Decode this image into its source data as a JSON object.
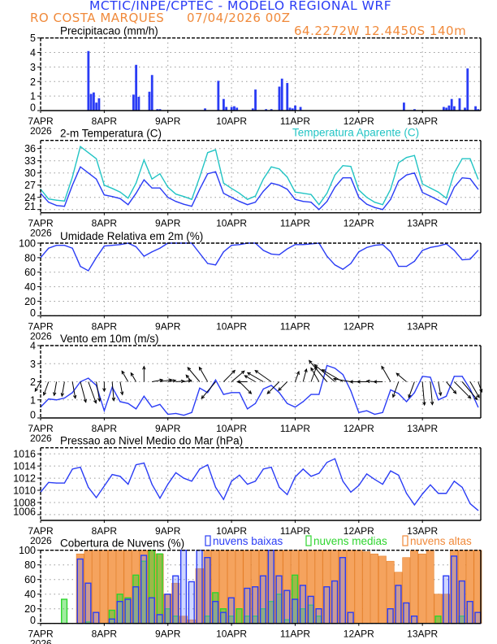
{
  "header": {
    "title": "MCTIC/INPE/CPTEC - MODELO REGIONAL WRF",
    "location": "RO COSTA MARQUES",
    "run": "07/04/2026 00Z",
    "coords": "64.2272W 12.4450S 140m"
  },
  "colors": {
    "title": "#2a3cf5",
    "orange": "#f0893a",
    "blue": "#2a3cf5",
    "cyan": "#22c4c4",
    "green": "#2ed52e",
    "high_fill": "#f5a35e"
  },
  "chart_data": [
    {
      "id": "precip",
      "type": "bar",
      "title": "Precipitacao (mm/h)",
      "ylim": [
        0,
        5
      ],
      "yticks": [
        "0",
        "1",
        "2",
        "3",
        "4",
        "5"
      ],
      "grid": true,
      "xticks": [
        "7APR",
        "8APR",
        "9APR",
        "10APR",
        "11APR",
        "12APR",
        "13APR"
      ],
      "year": "2026",
      "bars": [
        [
          "07APR 18Z",
          4.1
        ],
        [
          "07APR 19Z",
          1.15
        ],
        [
          "07APR 20Z",
          1.25
        ],
        [
          "07APR 21Z",
          0.55
        ],
        [
          "07APR 22Z",
          0.85
        ],
        [
          "08APR 11Z",
          1.1
        ],
        [
          "08APR 12Z",
          3.15
        ],
        [
          "08APR 13Z",
          0.95
        ],
        [
          "08APR 17Z",
          1.3
        ],
        [
          "08APR 18Z",
          2.45
        ],
        [
          "08APR 20Z",
          0.1
        ],
        [
          "08APR 21Z",
          0.1
        ],
        [
          "09APR 14Z",
          0.15
        ],
        [
          "09APR 19Z",
          2.05
        ],
        [
          "09APR 21Z",
          0.8
        ],
        [
          "09APR 22Z",
          0.25
        ],
        [
          "10APR 00Z",
          0.25
        ],
        [
          "10APR 01Z",
          0.3
        ],
        [
          "10APR 02Z",
          0.2
        ],
        [
          "10APR 08Z",
          0.15
        ],
        [
          "10APR 09Z",
          1.45
        ],
        [
          "10APR 13Z",
          0.1
        ],
        [
          "10APR 15Z",
          0.1
        ],
        [
          "10APR 18Z",
          1.65
        ],
        [
          "10APR 19Z",
          2.2
        ],
        [
          "10APR 21Z",
          1.9
        ],
        [
          "10APR 22Z",
          0.2
        ],
        [
          "10APR 23Z",
          0.15
        ],
        [
          "11APR 00Z",
          0.35
        ],
        [
          "11APR 02Z",
          0.25
        ],
        [
          "12APR 17Z",
          0.55
        ],
        [
          "12APR 21Z",
          0.1
        ],
        [
          "13APR 08Z",
          0.25
        ],
        [
          "13APR 09Z",
          0.2
        ],
        [
          "13APR 10Z",
          0.35
        ],
        [
          "13APR 11Z",
          0.8
        ],
        [
          "13APR 12Z",
          0.3
        ],
        [
          "13APR 14Z",
          0.85
        ],
        [
          "13APR 16Z",
          0.2
        ],
        [
          "13APR 17Z",
          2.9
        ],
        [
          "13APR 20Z",
          0.3
        ],
        [
          "13APR 21Z",
          0.1
        ]
      ]
    },
    {
      "id": "temp",
      "type": "line",
      "title": "2-m Temperatura (C)",
      "ylim": [
        20.2,
        38
      ],
      "yticks": [
        "21",
        "24",
        "27",
        "30",
        "33",
        "36"
      ],
      "grid": true,
      "xticks": [
        "7APR",
        "8APR",
        "9APR",
        "10APR",
        "11APR",
        "12APR",
        "13APR"
      ],
      "year": "2026",
      "series": [
        {
          "name": "",
          "color": "#2a3cf5",
          "values": [
            25.0,
            22.8,
            22.0,
            21.8,
            27.0,
            31.5,
            30.0,
            28.5,
            24.6,
            24.2,
            23.7,
            22.2,
            25.0,
            28.3,
            26.3,
            26.3,
            24.0,
            23.0,
            22.3,
            21.8,
            26.0,
            29.8,
            30.3,
            25.0,
            24.0,
            23.0,
            22.2,
            22.8,
            25.5,
            27.5,
            27.0,
            26.0,
            23.5,
            23.0,
            22.8,
            21.0,
            23.0,
            26.5,
            28.8,
            28.8,
            24.0,
            22.3,
            21.5,
            21.0,
            23.5,
            28.0,
            29.5,
            30.0,
            25.2,
            24.3,
            23.3,
            22.2,
            26.5,
            28.8,
            28.6,
            26.0
          ]
        },
        {
          "name": "Temperatura Aparente (C)",
          "color": "#22c4c4",
          "values": [
            26.0,
            23.6,
            23.3,
            23.1,
            29.0,
            36.5,
            35.0,
            33.5,
            27.0,
            26.2,
            25.3,
            23.8,
            27.5,
            33.2,
            28.5,
            29.8,
            26.5,
            24.8,
            24.2,
            23.5,
            29.0,
            35.0,
            35.7,
            27.5,
            26.2,
            25.0,
            23.5,
            24.3,
            28.5,
            31.5,
            31.0,
            29.0,
            25.3,
            25.0,
            24.7,
            22.2,
            25.0,
            29.5,
            31.8,
            31.6,
            25.8,
            24.0,
            22.8,
            22.2,
            26.0,
            32.5,
            33.8,
            34.3,
            27.3,
            26.3,
            25.3,
            23.8,
            30.0,
            33.5,
            33.5,
            28.5
          ]
        }
      ]
    },
    {
      "id": "rh",
      "type": "line",
      "title": "Umidade Relativa em 2m (%)",
      "ylim": [
        0,
        100
      ],
      "yticks": [
        "0",
        "20",
        "40",
        "60",
        "80",
        "100"
      ],
      "grid": true,
      "xticks": [
        "7APR",
        "8APR",
        "9APR",
        "10APR",
        "11APR",
        "12APR",
        "13APR"
      ],
      "year": "2026",
      "series": [
        {
          "color": "#2a3cf5",
          "values": [
            80,
            93,
            97,
            97,
            93,
            68,
            62,
            80,
            96,
            97,
            98,
            100,
            95,
            82,
            88,
            93,
            100,
            100,
            100,
            100,
            86,
            72,
            70,
            88,
            97,
            98,
            100,
            100,
            90,
            85,
            84,
            92,
            98,
            98,
            99,
            100,
            82,
            70,
            64,
            72,
            88,
            94,
            97,
            98,
            88,
            68,
            68,
            75,
            90,
            94,
            96,
            99,
            90,
            77,
            78,
            90
          ]
        }
      ]
    },
    {
      "id": "wind",
      "type": "line",
      "title": "Vento em 10m (m/s)",
      "ylim": [
        0,
        4
      ],
      "yticks": [
        "0",
        "1",
        "2",
        "3",
        "4"
      ],
      "grid": true,
      "xticks": [
        "7APR",
        "8APR",
        "9APR",
        "10APR",
        "11APR",
        "12APR",
        "13APR"
      ],
      "year": "2026",
      "series": [
        {
          "color": "#2a3cf5",
          "values": [
            0.6,
            1.05,
            1.0,
            1.1,
            1.4,
            2.0,
            2.2,
            1.8,
            0.4,
            1.7,
            0.9,
            0.8,
            0.5,
            1.2,
            0.6,
            0.75,
            0.2,
            0.25,
            0.15,
            0.3,
            1.65,
            1.4,
            2.1,
            1.3,
            1.4,
            1.4,
            0.5,
            0.8,
            1.6,
            1.8,
            1.4,
            0.8,
            0.6,
            0.9,
            1.3,
            1.3,
            2.9,
            2.75,
            2.4,
            1.5,
            0.3,
            0.4,
            0.2,
            0.3,
            1.55,
            1.35,
            0.9,
            1.4,
            2.3,
            2.25,
            1.0,
            1.2,
            2.3,
            2.3,
            1.6,
            0.6
          ]
        }
      ],
      "arrow_direction_deg": [
        210,
        200,
        190,
        190,
        170,
        165,
        160,
        170,
        180,
        175,
        170,
        330,
        330,
        0,
        80,
        80,
        80,
        85,
        80,
        320,
        320,
        330,
        220,
        45,
        50,
        135,
        270,
        300,
        300,
        305,
        225,
        225,
        20,
        15,
        20,
        330,
        320,
        310,
        300,
        280,
        270,
        270,
        275,
        270,
        330,
        200,
        310,
        200,
        175,
        175,
        170,
        140,
        135,
        140,
        150,
        160
      ]
    },
    {
      "id": "pressure",
      "type": "line",
      "title": "Pressao ao Nivel Medio do Mar (hPa)",
      "ylim": [
        1005.05,
        1017
      ],
      "yticks": [
        "1006",
        "1008",
        "1010",
        "1012",
        "1014",
        "1016"
      ],
      "grid": true,
      "xticks": [
        "7APR",
        "8APR",
        "9APR",
        "10APR",
        "11APR",
        "12APR",
        "13APR"
      ],
      "year": "2026",
      "series": [
        {
          "color": "#2a3cf5",
          "values": [
            1009.7,
            1011.3,
            1011.2,
            1011.2,
            1013.5,
            1013.8,
            1010.5,
            1008.8,
            1010.7,
            1012.6,
            1012.3,
            1011.0,
            1014.2,
            1014.5,
            1011.0,
            1008.7,
            1011.0,
            1012.9,
            1012.0,
            1011.5,
            1013.5,
            1014.2,
            1010.5,
            1008.5,
            1011.5,
            1012.5,
            1011.0,
            1011.5,
            1013.5,
            1013.8,
            1010.5,
            1009.3,
            1012.2,
            1013.5,
            1012.3,
            1012.8,
            1014.6,
            1015.2,
            1011.5,
            1009.7,
            1010.8,
            1012.7,
            1011.8,
            1011.0,
            1013.2,
            1012.5,
            1009.5,
            1007.6,
            1009.4,
            1010.9,
            1009.5,
            1009.5,
            1011.5,
            1010.5,
            1007.8,
            1006.7
          ]
        }
      ]
    },
    {
      "id": "clouds",
      "type": "bar",
      "title": "Cobertura de Nuvens (%)",
      "ylim": [
        0,
        100
      ],
      "yticks": [
        "0",
        "20",
        "40",
        "60",
        "80",
        "100"
      ],
      "grid": true,
      "xticks": [
        "7APR",
        "8APR",
        "9APR",
        "10APR",
        "11APR",
        "12APR",
        "13APR"
      ],
      "year": "2026",
      "series": [
        {
          "name": "nuvens altas",
          "color": "#f0893a",
          "values": [
            0,
            0,
            0,
            0,
            0,
            95,
            100,
            100,
            100,
            100,
            100,
            100,
            100,
            100,
            100,
            95,
            40,
            55,
            10,
            5,
            75,
            100,
            100,
            100,
            100,
            100,
            100,
            100,
            100,
            100,
            100,
            100,
            100,
            100,
            100,
            100,
            100,
            100,
            100,
            100,
            100,
            98,
            95,
            92,
            85,
            70,
            90,
            100,
            95,
            100,
            40,
            40,
            100,
            100,
            100,
            100
          ]
        },
        {
          "name": "nuvens medias",
          "color": "#2ed52e",
          "values": [
            0,
            0,
            0,
            33,
            0,
            0,
            2,
            0,
            0,
            18,
            40,
            35,
            66,
            85,
            100,
            95,
            20,
            10,
            0,
            0,
            0,
            10,
            42,
            20,
            10,
            20,
            10,
            10,
            20,
            30,
            40,
            5,
            66,
            20,
            25,
            10,
            0,
            0,
            0,
            0,
            0,
            0,
            0,
            0,
            0,
            0,
            0,
            0,
            0,
            0,
            10,
            0,
            0,
            10,
            0,
            0
          ]
        },
        {
          "name": "nuvens baixas",
          "color": "#2a3cf5",
          "values": [
            0,
            0,
            0,
            0,
            0,
            88,
            55,
            15,
            0,
            6,
            30,
            33,
            50,
            93,
            35,
            12,
            40,
            65,
            100,
            57,
            100,
            90,
            30,
            15,
            35,
            0,
            48,
            50,
            65,
            100,
            65,
            45,
            33,
            52,
            37,
            20,
            50,
            58,
            90,
            15,
            0,
            0,
            0,
            0,
            20,
            52,
            28,
            10,
            0,
            0,
            0,
            65,
            92,
            58,
            30,
            15
          ]
        }
      ]
    }
  ],
  "times": [
    "07APR 00Z",
    "07APR 03Z",
    "07APR 06Z",
    "07APR 09Z",
    "07APR 12Z",
    "07APR 15Z",
    "07APR 18Z",
    "07APR 21Z",
    "08APR 00Z",
    "08APR 03Z",
    "08APR 06Z",
    "08APR 09Z",
    "08APR 12Z",
    "08APR 15Z",
    "08APR 18Z",
    "08APR 21Z",
    "09APR 00Z",
    "09APR 03Z",
    "09APR 06Z",
    "09APR 09Z",
    "09APR 12Z",
    "09APR 15Z",
    "09APR 18Z",
    "09APR 21Z",
    "10APR 00Z",
    "10APR 03Z",
    "10APR 06Z",
    "10APR 09Z",
    "10APR 12Z",
    "10APR 15Z",
    "10APR 18Z",
    "10APR 21Z",
    "11APR 00Z",
    "11APR 03Z",
    "11APR 06Z",
    "11APR 09Z",
    "11APR 12Z",
    "11APR 15Z",
    "11APR 18Z",
    "11APR 21Z",
    "12APR 00Z",
    "12APR 03Z",
    "12APR 06Z",
    "12APR 09Z",
    "12APR 12Z",
    "12APR 15Z",
    "12APR 18Z",
    "12APR 21Z",
    "13APR 00Z",
    "13APR 03Z",
    "13APR 06Z",
    "13APR 09Z",
    "13APR 12Z",
    "13APR 15Z",
    "13APR 18Z",
    "13APR 21Z"
  ]
}
